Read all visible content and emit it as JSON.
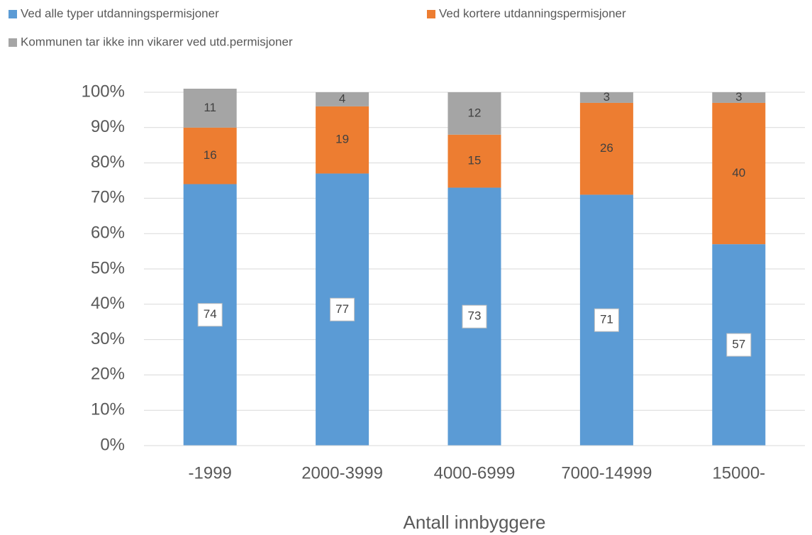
{
  "chart_data": {
    "type": "stacked_bar",
    "categories": [
      "-1999",
      "2000-3999",
      "4000-6999",
      "7000-14999",
      "15000-"
    ],
    "series": [
      {
        "name": "Ved alle typer utdanningspermisjoner",
        "color": "#5b9bd5",
        "values": [
          74,
          77,
          73,
          71,
          57
        ]
      },
      {
        "name": "Ved kortere utdanningspermisjoner",
        "color": "#ed7d31",
        "values": [
          16,
          19,
          15,
          26,
          40
        ]
      },
      {
        "name": "Kommunen tar ikke inn vikarer ved utd.permisjoner",
        "color": "#a5a5a5",
        "values": [
          11,
          4,
          12,
          3,
          3
        ]
      }
    ],
    "xlabel": "Antall innbyggere",
    "ylim": [
      0,
      100
    ],
    "yticks": [
      {
        "value": 0,
        "label": "0%"
      },
      {
        "value": 10,
        "label": "10%"
      },
      {
        "value": 20,
        "label": "20%"
      },
      {
        "value": 30,
        "label": "30%"
      },
      {
        "value": 40,
        "label": "40%"
      },
      {
        "value": 50,
        "label": "50%"
      },
      {
        "value": 60,
        "label": "60%"
      },
      {
        "value": 70,
        "label": "70%"
      },
      {
        "value": 80,
        "label": "80%"
      },
      {
        "value": 90,
        "label": "90%"
      },
      {
        "value": 100,
        "label": "100%"
      }
    ],
    "grid": true,
    "legend": "top"
  }
}
